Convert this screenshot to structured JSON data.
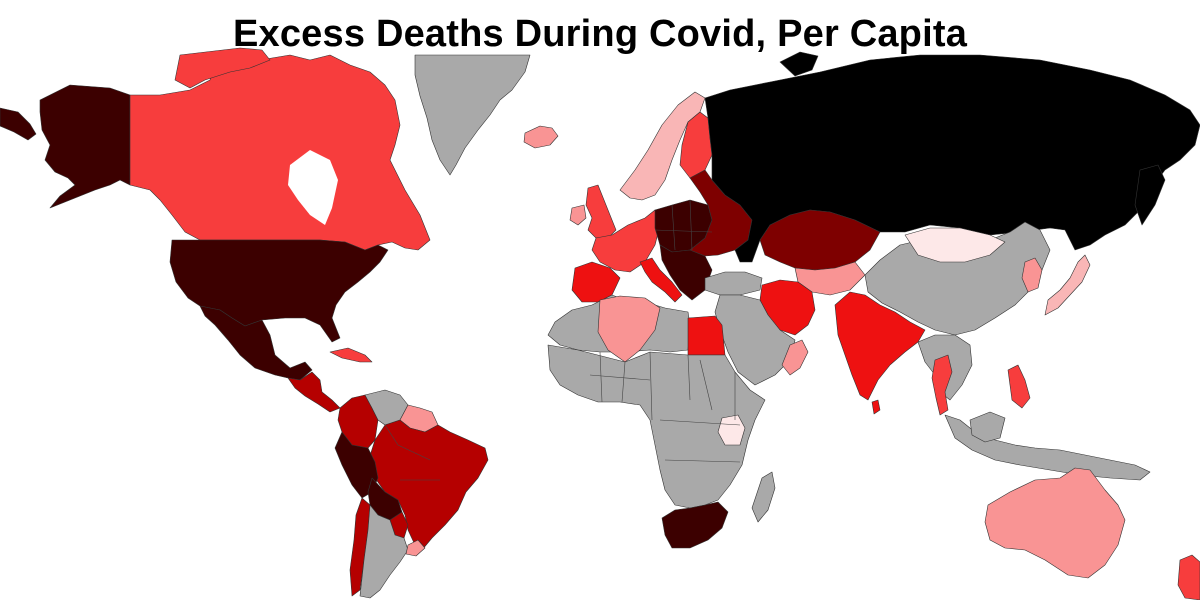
{
  "title": "Excess Deaths During Covid, Per Capita",
  "palette": {
    "no_data": "#a9a9a9",
    "very_low": "#fde8e8",
    "low": "#f9b6b6",
    "low_mid": "#f99494",
    "mid": "#f73d3d",
    "high": "#ee1111",
    "higher": "#b50000",
    "very_high": "#7e0000",
    "extreme": "#3c0000",
    "max": "#000000"
  },
  "regions": [
    {
      "name": "alaska",
      "level": "extreme"
    },
    {
      "name": "canada",
      "level": "mid"
    },
    {
      "name": "greenland",
      "level": "no_data"
    },
    {
      "name": "iceland",
      "level": "low_mid"
    },
    {
      "name": "usa",
      "level": "extreme"
    },
    {
      "name": "mexico",
      "level": "extreme"
    },
    {
      "name": "central-america",
      "level": "higher"
    },
    {
      "name": "cuba",
      "level": "mid"
    },
    {
      "name": "colombia",
      "level": "higher"
    },
    {
      "name": "venezuela",
      "level": "no_data"
    },
    {
      "name": "guianas",
      "level": "low_mid"
    },
    {
      "name": "brazil",
      "level": "higher"
    },
    {
      "name": "peru",
      "level": "extreme"
    },
    {
      "name": "bolivia",
      "level": "extreme"
    },
    {
      "name": "paraguay",
      "level": "higher"
    },
    {
      "name": "chile",
      "level": "higher"
    },
    {
      "name": "argentina",
      "level": "no_data"
    },
    {
      "name": "uruguay",
      "level": "low_mid"
    },
    {
      "name": "uk",
      "level": "mid"
    },
    {
      "name": "ireland",
      "level": "low_mid"
    },
    {
      "name": "scandinavia",
      "level": "low"
    },
    {
      "name": "finland",
      "level": "mid"
    },
    {
      "name": "west-europe",
      "level": "mid"
    },
    {
      "name": "iberia",
      "level": "high"
    },
    {
      "name": "italy",
      "level": "high"
    },
    {
      "name": "central-europe",
      "level": "extreme"
    },
    {
      "name": "balkans",
      "level": "extreme"
    },
    {
      "name": "eastern-europe",
      "level": "very_high"
    },
    {
      "name": "russia",
      "level": "max"
    },
    {
      "name": "kazakhstan",
      "level": "very_high"
    },
    {
      "name": "central-asia",
      "level": "low_mid"
    },
    {
      "name": "turkey",
      "level": "no_data"
    },
    {
      "name": "iran",
      "level": "high"
    },
    {
      "name": "middle-east",
      "level": "no_data"
    },
    {
      "name": "oman",
      "level": "low_mid"
    },
    {
      "name": "india",
      "level": "high"
    },
    {
      "name": "china",
      "level": "no_data"
    },
    {
      "name": "mongolia",
      "level": "very_low"
    },
    {
      "name": "japan",
      "level": "low"
    },
    {
      "name": "korea",
      "level": "low_mid"
    },
    {
      "name": "southeast-asia",
      "level": "no_data"
    },
    {
      "name": "thailand",
      "level": "mid"
    },
    {
      "name": "philippines",
      "level": "mid"
    },
    {
      "name": "indonesia",
      "level": "no_data"
    },
    {
      "name": "australia",
      "level": "low_mid"
    },
    {
      "name": "new-zealand",
      "level": "mid"
    },
    {
      "name": "north-africa",
      "level": "no_data"
    },
    {
      "name": "algeria",
      "level": "low_mid"
    },
    {
      "name": "egypt",
      "level": "high"
    },
    {
      "name": "subsaharan-africa",
      "level": "no_data"
    },
    {
      "name": "kenya",
      "level": "very_low"
    },
    {
      "name": "south-africa",
      "level": "extreme"
    },
    {
      "name": "madagascar",
      "level": "no_data"
    }
  ]
}
